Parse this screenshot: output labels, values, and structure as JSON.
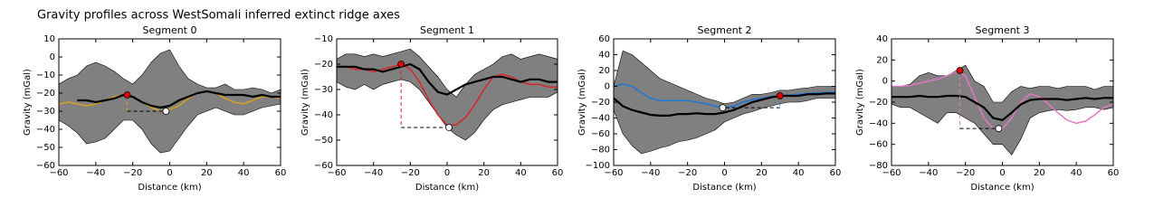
{
  "title": "Gravity profiles across WestSomali inferred extinct ridge axes",
  "chart_data": [
    {
      "type": "line",
      "title": "Segment 0",
      "xlabel": "Distance (km)",
      "ylabel": "Gravity (mGal)",
      "xlim": [
        -60,
        60
      ],
      "ylim": [
        -60,
        10
      ],
      "xticks": [
        {
          "value": -60,
          "label": "−60"
        },
        {
          "value": -40,
          "label": "−40"
        },
        {
          "value": -20,
          "label": "−20"
        },
        0,
        20,
        40,
        60
      ],
      "yticks": [
        10,
        0,
        {
          "value": -10,
          "label": "−10"
        },
        {
          "value": -20,
          "label": "−20"
        },
        {
          "value": -30,
          "label": "−30"
        },
        {
          "value": -40,
          "label": "−40"
        },
        {
          "value": -50,
          "label": "−50"
        },
        {
          "value": -60,
          "label": "−60"
        }
      ],
      "x": [
        -60,
        -55,
        -50,
        -45,
        -40,
        -35,
        -30,
        -25,
        -20,
        -15,
        -10,
        -5,
        0,
        5,
        10,
        15,
        20,
        25,
        30,
        35,
        40,
        45,
        50,
        55,
        60
      ],
      "envelope_upper": [
        -15,
        -12,
        -10,
        -5,
        -3,
        -5,
        -8,
        -12,
        -15,
        -10,
        -3,
        2,
        4,
        -5,
        -12,
        -15,
        -17,
        -17,
        -15,
        -18,
        -18,
        -17,
        -18,
        -20,
        -18
      ],
      "envelope_lower": [
        -35,
        -38,
        -42,
        -48,
        -47,
        -45,
        -40,
        -35,
        -35,
        -40,
        -48,
        -53,
        -52,
        -45,
        -38,
        -32,
        -30,
        -28,
        -30,
        -32,
        -32,
        -30,
        -28,
        -27,
        -26
      ],
      "mean": [
        null,
        null,
        -24,
        -24,
        -25,
        -24,
        -23,
        -21,
        -22,
        -25,
        -27,
        -28,
        -27,
        -24,
        -22,
        -20,
        -19,
        -20,
        -21,
        -21,
        -21,
        -22,
        -21,
        -22,
        -22
      ],
      "model": [
        -26,
        -25,
        -26,
        -27,
        -26,
        -24,
        -22,
        -21,
        -22,
        -25,
        -28,
        -30,
        -29,
        -27,
        -23,
        -20,
        -19,
        -20,
        -23,
        -25,
        -26,
        -24,
        -22,
        -22,
        -23
      ],
      "model_color": "#d4a020",
      "envelope_color": "#808080",
      "mean_color": "#000000",
      "peak": [
        -23,
        -21
      ],
      "trough": [
        -2,
        -30
      ]
    },
    {
      "type": "line",
      "title": "Segment 1",
      "xlabel": "Distance (km)",
      "ylabel": "Gravity (mGal)",
      "xlim": [
        -60,
        60
      ],
      "ylim": [
        -60,
        -10
      ],
      "xticks": [
        {
          "value": -60,
          "label": "−60"
        },
        {
          "value": -40,
          "label": "−40"
        },
        {
          "value": -20,
          "label": "−20"
        },
        0,
        20,
        40,
        60
      ],
      "yticks": [
        {
          "value": -10,
          "label": "−10"
        },
        {
          "value": -20,
          "label": "−20"
        },
        {
          "value": -30,
          "label": "−30"
        },
        {
          "value": -40,
          "label": "−40"
        },
        {
          "value": -50,
          "label": "−50"
        },
        {
          "value": -60,
          "label": "−60"
        }
      ],
      "x": [
        -60,
        -55,
        -50,
        -45,
        -40,
        -35,
        -30,
        -25,
        -20,
        -15,
        -10,
        -5,
        0,
        5,
        10,
        15,
        20,
        25,
        30,
        35,
        40,
        45,
        50,
        55,
        60
      ],
      "envelope_upper": [
        -18,
        -16,
        -16,
        -17,
        -16,
        -17,
        -16,
        -15,
        -14,
        -17,
        -21,
        -25,
        -30,
        -33,
        -28,
        -24,
        -22,
        -20,
        -17,
        -16,
        -18,
        -17,
        -16,
        -17,
        -18
      ],
      "envelope_lower": [
        -27,
        -29,
        -30,
        -28,
        -30,
        -28,
        -27,
        -26,
        -27,
        -30,
        -35,
        -40,
        -45,
        -48,
        -50,
        -47,
        -42,
        -38,
        -36,
        -35,
        -34,
        -33,
        -33,
        -33,
        -31
      ],
      "mean": [
        -21,
        -21,
        -21,
        -22,
        -22,
        -23,
        -22,
        -21,
        -20,
        -22,
        -27,
        -31,
        -32,
        -30,
        -28,
        -27,
        -26,
        -25,
        -25,
        -26,
        -27,
        -26,
        -26,
        -27,
        -27
      ],
      "model": [
        -21,
        -21,
        -22,
        -22,
        -23,
        -22,
        -21,
        -20,
        -22,
        -27,
        -34,
        -40,
        -44,
        -44,
        -41,
        -36,
        -30,
        -25,
        -24,
        -25,
        -27,
        -28,
        -28,
        -29,
        -29
      ],
      "model_color": "#d62728",
      "envelope_color": "#808080",
      "mean_color": "#000000",
      "peak": [
        -25,
        -20
      ],
      "trough": [
        1,
        -45
      ]
    },
    {
      "type": "line",
      "title": "Segment 2",
      "xlabel": "Distance (km)",
      "ylabel": "Gravity (mGal)",
      "xlim": [
        -60,
        60
      ],
      "ylim": [
        -100,
        60
      ],
      "xticks": [
        {
          "value": -60,
          "label": "−60"
        },
        {
          "value": -40,
          "label": "−40"
        },
        {
          "value": -20,
          "label": "−20"
        },
        0,
        20,
        40,
        60
      ],
      "yticks": [
        60,
        40,
        20,
        0,
        {
          "value": -20,
          "label": "−20"
        },
        {
          "value": -40,
          "label": "−40"
        },
        {
          "value": -60,
          "label": "−60"
        },
        {
          "value": -80,
          "label": "−80"
        },
        {
          "value": -100,
          "label": "−100"
        }
      ],
      "x": [
        -60,
        -55,
        -50,
        -45,
        -40,
        -35,
        -30,
        -25,
        -20,
        -15,
        -10,
        -5,
        0,
        5,
        10,
        15,
        20,
        25,
        30,
        35,
        40,
        45,
        50,
        55,
        60
      ],
      "envelope_upper": [
        0,
        45,
        40,
        30,
        20,
        10,
        5,
        0,
        -5,
        -10,
        -15,
        -18,
        -22,
        -20,
        -15,
        -10,
        -10,
        -8,
        -5,
        -5,
        -3,
        -2,
        0,
        0,
        0
      ],
      "envelope_lower": [
        -30,
        -60,
        -75,
        -85,
        -82,
        -78,
        -75,
        -70,
        -68,
        -65,
        -60,
        -55,
        -45,
        -40,
        -35,
        -32,
        -28,
        -25,
        -22,
        -20,
        -20,
        -18,
        -15,
        -15,
        -15
      ],
      "mean": [
        -15,
        -25,
        -30,
        -33,
        -36,
        -37,
        -37,
        -35,
        -35,
        -34,
        -35,
        -35,
        -33,
        -30,
        -25,
        -20,
        -17,
        -14,
        -12,
        -12,
        -12,
        -10,
        -10,
        -9,
        -9
      ],
      "model": [
        0,
        3,
        0,
        -8,
        -15,
        -18,
        -18,
        -18,
        -18,
        -20,
        -22,
        -25,
        -27,
        -25,
        -20,
        -17,
        -15,
        -13,
        -12,
        -11,
        -10,
        -9,
        -8,
        -8,
        -7
      ],
      "model_color": "#1f77d4",
      "envelope_color": "#808080",
      "mean_color": "#000000",
      "peak": [
        30,
        -12
      ],
      "trough": [
        -1,
        -27
      ]
    },
    {
      "type": "line",
      "title": "Segment 3",
      "xlabel": "Distance (km)",
      "ylabel": "Gravity (mGal)",
      "xlim": [
        -60,
        60
      ],
      "ylim": [
        -80,
        40
      ],
      "xticks": [
        {
          "value": -60,
          "label": "−60"
        },
        {
          "value": -40,
          "label": "−40"
        },
        {
          "value": -20,
          "label": "−20"
        },
        0,
        20,
        40,
        60
      ],
      "yticks": [
        40,
        20,
        0,
        {
          "value": -20,
          "label": "−20"
        },
        {
          "value": -40,
          "label": "−40"
        },
        {
          "value": -60,
          "label": "−60"
        },
        {
          "value": -80,
          "label": "−80"
        }
      ],
      "x": [
        -60,
        -55,
        -50,
        -45,
        -40,
        -35,
        -30,
        -25,
        -20,
        -15,
        -10,
        -5,
        0,
        5,
        10,
        15,
        20,
        25,
        30,
        35,
        40,
        45,
        50,
        55,
        60
      ],
      "envelope_upper": [
        -5,
        -5,
        -3,
        5,
        8,
        5,
        5,
        10,
        15,
        0,
        -5,
        -20,
        -20,
        -10,
        -5,
        -7,
        -5,
        -5,
        -7,
        -5,
        -5,
        -5,
        -8,
        -5,
        -5
      ],
      "envelope_lower": [
        -22,
        -25,
        -25,
        -30,
        -35,
        -40,
        -30,
        -30,
        -35,
        -40,
        -50,
        -60,
        -60,
        -70,
        -55,
        -35,
        -30,
        -28,
        -27,
        -28,
        -27,
        -25,
        -25,
        -27,
        -25
      ],
      "mean": [
        -15,
        -15,
        -15,
        -14,
        -15,
        -15,
        -14,
        -14,
        -15,
        -20,
        -25,
        -35,
        -37,
        -30,
        -22,
        -18,
        -17,
        -17,
        -17,
        -18,
        -17,
        -16,
        -17,
        -16,
        -16
      ],
      "model": [
        -5,
        -5,
        -4,
        -2,
        0,
        2,
        5,
        9,
        5,
        -15,
        -35,
        -45,
        -45,
        -35,
        -20,
        -12,
        -15,
        -22,
        -30,
        -37,
        -40,
        -38,
        -32,
        -25,
        -22
      ],
      "model_color": "#e377c2",
      "envelope_color": "#808080",
      "mean_color": "#000000",
      "peak": [
        -23,
        10
      ],
      "trough": [
        -2,
        -45
      ]
    }
  ]
}
